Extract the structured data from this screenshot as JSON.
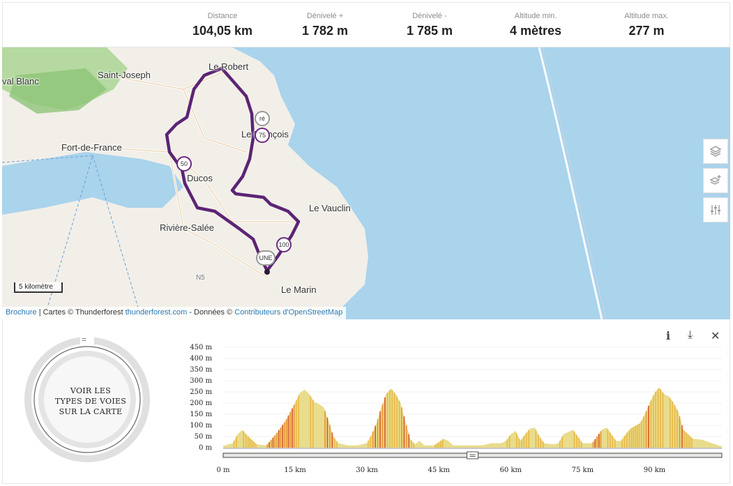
{
  "stats": [
    {
      "label": "Distance",
      "value": "104,05 km"
    },
    {
      "label": "Dénivelé +",
      "value": "1 782 m"
    },
    {
      "label": "Dénivelé -",
      "value": "1 785 m"
    },
    {
      "label": "Altitude min.",
      "value": "4 mètres"
    },
    {
      "label": "Altitude max.",
      "value": "277 m"
    }
  ],
  "map": {
    "places": [
      "Le Robert",
      "Saint-Joseph",
      "val Blanc",
      "Le François",
      "Fort-de-France",
      "Ducos",
      "Le Vauclin",
      "Rivière-Salée",
      "Le Marin"
    ],
    "markers": [
      "ré",
      "75",
      "50",
      "100",
      "UNE"
    ],
    "road_label": "N5",
    "scale": "5 kilomètre",
    "attribution": {
      "brochure": "Brochure",
      "cartes": "| Cartes © Thunderforest",
      "tf_link": "thunderforest.com",
      "donnees": "- Données ©",
      "osm_link": "Contributeurs d'OpenStreetMap"
    },
    "controls": [
      "layers-icon",
      "add-layer-icon",
      "settings-sliders-icon"
    ]
  },
  "panel": {
    "ring_handle": "=",
    "ring_text_1": "VOIR LES",
    "ring_text_2": "TYPES DE VOIES",
    "ring_text_3": "SUR LA CARTE",
    "info_icon": "i",
    "download_icon": "⤓",
    "close_icon": "✕"
  },
  "chart_data": {
    "type": "area",
    "y_ticks": [
      "450 m",
      "400 m",
      "350 m",
      "300 m",
      "250 m",
      "200 m",
      "150 m",
      "100 m",
      "50 m",
      "0 m"
    ],
    "x_ticks": [
      "0 m",
      "15 km",
      "30 km",
      "45 km",
      "60 km",
      "75 km",
      "90 km"
    ],
    "xlim": [
      0,
      104.05
    ],
    "ylim": [
      0,
      450
    ],
    "x": [
      0,
      2,
      3,
      4,
      5,
      7,
      9,
      11,
      13,
      15,
      16,
      17,
      18,
      19,
      20,
      21,
      22,
      23,
      24,
      26,
      28,
      30,
      31,
      32,
      33,
      34,
      35,
      36,
      37,
      38,
      39,
      40,
      41,
      42,
      44,
      46,
      47,
      48,
      50,
      52,
      54,
      56,
      58,
      59,
      60,
      61,
      62,
      63,
      64,
      65,
      66,
      67,
      69,
      70,
      71,
      72,
      73,
      74,
      75,
      77,
      79,
      80,
      81,
      82,
      83,
      84,
      85,
      87,
      88,
      89,
      90,
      91,
      92,
      93,
      94,
      95,
      96,
      98,
      100,
      102,
      104.05
    ],
    "y": [
      8,
      20,
      60,
      80,
      55,
      15,
      10,
      60,
      120,
      200,
      245,
      260,
      240,
      205,
      195,
      180,
      120,
      50,
      20,
      10,
      10,
      20,
      60,
      110,
      180,
      240,
      265,
      240,
      200,
      120,
      40,
      15,
      30,
      10,
      10,
      40,
      30,
      10,
      10,
      10,
      10,
      20,
      20,
      30,
      60,
      75,
      30,
      60,
      85,
      90,
      50,
      20,
      15,
      20,
      60,
      70,
      80,
      50,
      20,
      20,
      80,
      90,
      60,
      30,
      30,
      60,
      85,
      110,
      150,
      200,
      245,
      270,
      240,
      230,
      200,
      160,
      80,
      40,
      35,
      20,
      5
    ]
  }
}
